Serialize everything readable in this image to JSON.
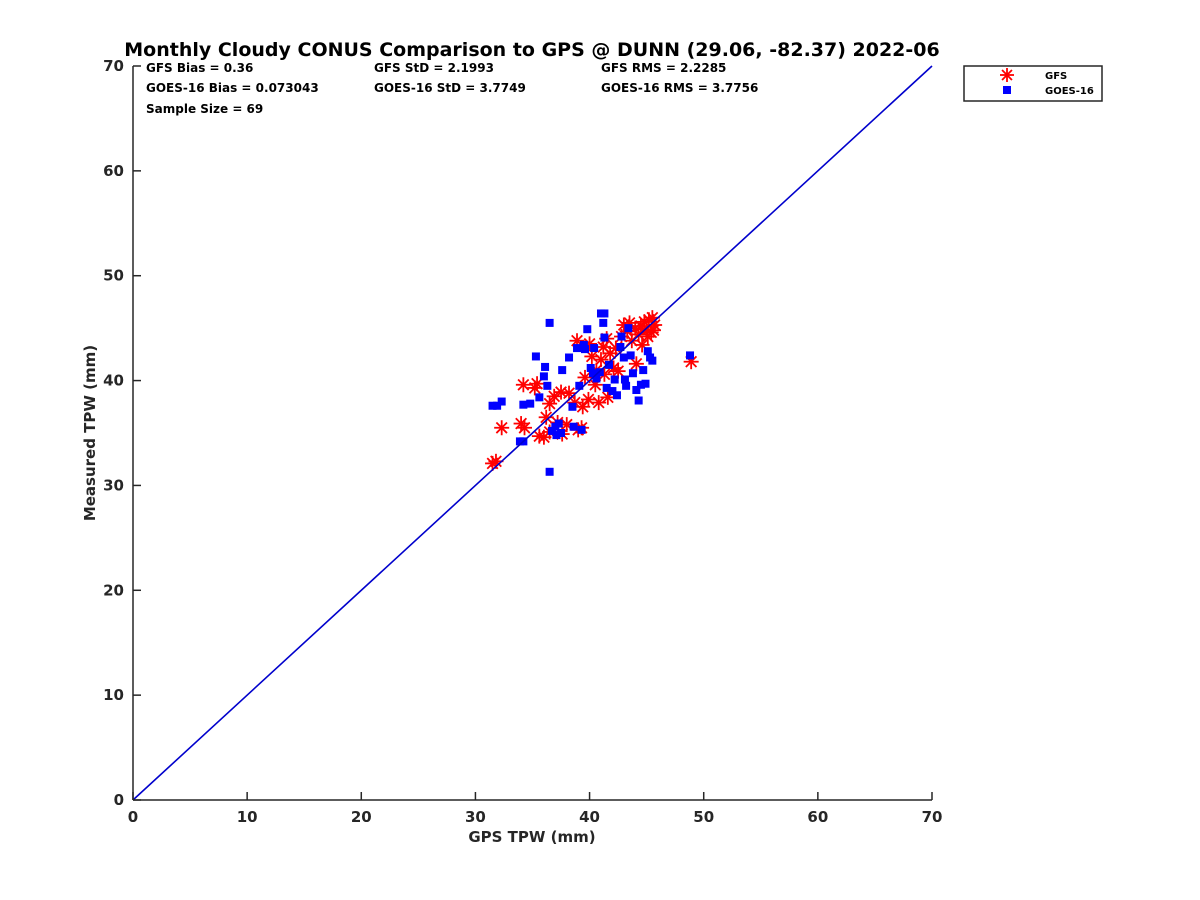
{
  "chart_data": {
    "type": "scatter",
    "title": "Monthly Cloudy CONUS Comparison to GPS @ DUNN (29.06, -82.37) 2022-06",
    "xlabel": "GPS TPW (mm)",
    "ylabel": "Measured TPW (mm)",
    "xlim": [
      0,
      70
    ],
    "ylim": [
      0,
      70
    ],
    "xticks": [
      "0",
      "10",
      "20",
      "30",
      "40",
      "50",
      "60",
      "70"
    ],
    "yticks": [
      "0",
      "10",
      "20",
      "30",
      "40",
      "50",
      "60",
      "70"
    ],
    "grid": false,
    "legend_position": "top-right",
    "stats": {
      "gfs_bias": "GFS Bias = 0.36",
      "goes_bias": "GOES-16 Bias = 0.073043",
      "sample_size": "Sample Size = 69",
      "gfs_std": "GFS StD = 2.1993",
      "goes_std": "GOES-16 StD = 3.7749",
      "gfs_rms": "GFS RMS = 2.2285",
      "goes_rms": "GOES-16 RMS = 3.7756"
    },
    "reference_line": {
      "x": [
        0,
        70
      ],
      "y": [
        0,
        70
      ],
      "color": "#0000cc"
    },
    "series": [
      {
        "name": "GFS",
        "marker": "asterisk",
        "color": "#ff0000",
        "points": [
          [
            31.5,
            32.1
          ],
          [
            31.8,
            32.3
          ],
          [
            32.3,
            35.5
          ],
          [
            34.0,
            35.9
          ],
          [
            34.3,
            35.5
          ],
          [
            34.2,
            39.6
          ],
          [
            35.2,
            39.3
          ],
          [
            35.4,
            39.7
          ],
          [
            35.6,
            34.7
          ],
          [
            36.0,
            34.6
          ],
          [
            36.2,
            36.5
          ],
          [
            36.5,
            37.8
          ],
          [
            36.5,
            35.1
          ],
          [
            36.9,
            38.5
          ],
          [
            37.2,
            36.0
          ],
          [
            37.5,
            38.9
          ],
          [
            37.6,
            34.9
          ],
          [
            38.0,
            35.8
          ],
          [
            38.2,
            38.8
          ],
          [
            38.7,
            37.9
          ],
          [
            38.9,
            43.8
          ],
          [
            39.0,
            35.3
          ],
          [
            39.3,
            35.5
          ],
          [
            39.4,
            37.5
          ],
          [
            39.6,
            40.3
          ],
          [
            39.9,
            38.2
          ],
          [
            40.0,
            43.5
          ],
          [
            40.2,
            42.3
          ],
          [
            40.5,
            39.6
          ],
          [
            40.6,
            41.0
          ],
          [
            40.8,
            37.9
          ],
          [
            41.0,
            42.0
          ],
          [
            41.2,
            43.2
          ],
          [
            41.3,
            40.6
          ],
          [
            41.5,
            44.0
          ],
          [
            41.6,
            38.4
          ],
          [
            41.8,
            42.6
          ],
          [
            42.1,
            41.2
          ],
          [
            42.3,
            43.1
          ],
          [
            42.5,
            40.9
          ],
          [
            42.8,
            44.2
          ],
          [
            43.0,
            45.3
          ],
          [
            43.3,
            44.7
          ],
          [
            43.5,
            45.5
          ],
          [
            43.7,
            43.8
          ],
          [
            44.0,
            45.0
          ],
          [
            44.1,
            41.6
          ],
          [
            44.3,
            44.4
          ],
          [
            44.5,
            45.2
          ],
          [
            44.6,
            43.4
          ],
          [
            44.8,
            45.6
          ],
          [
            45.0,
            44.9
          ],
          [
            45.1,
            44.2
          ],
          [
            45.2,
            45.8
          ],
          [
            45.4,
            44.6
          ],
          [
            45.5,
            46.0
          ],
          [
            45.6,
            44.8
          ],
          [
            45.7,
            45.3
          ],
          [
            48.9,
            41.8
          ]
        ]
      },
      {
        "name": "GOES-16",
        "marker": "square",
        "color": "#0000ff",
        "points": [
          [
            31.5,
            37.6
          ],
          [
            31.9,
            37.6
          ],
          [
            32.3,
            38.0
          ],
          [
            33.9,
            34.2
          ],
          [
            34.2,
            34.2
          ],
          [
            34.2,
            37.7
          ],
          [
            34.8,
            37.8
          ],
          [
            35.3,
            42.3
          ],
          [
            35.6,
            38.4
          ],
          [
            36.0,
            40.4
          ],
          [
            36.1,
            41.3
          ],
          [
            36.3,
            39.5
          ],
          [
            36.5,
            45.5
          ],
          [
            36.5,
            31.3
          ],
          [
            36.7,
            35.2
          ],
          [
            37.0,
            35.6
          ],
          [
            37.1,
            34.8
          ],
          [
            37.3,
            35.9
          ],
          [
            37.5,
            35.0
          ],
          [
            37.6,
            41.0
          ],
          [
            38.2,
            42.2
          ],
          [
            38.5,
            37.5
          ],
          [
            38.6,
            35.6
          ],
          [
            38.9,
            43.1
          ],
          [
            39.1,
            39.5
          ],
          [
            39.3,
            35.3
          ],
          [
            39.5,
            43.4
          ],
          [
            39.6,
            43.0
          ],
          [
            39.8,
            44.9
          ],
          [
            40.1,
            41.2
          ],
          [
            40.3,
            40.7
          ],
          [
            40.4,
            43.1
          ],
          [
            40.6,
            40.2
          ],
          [
            40.9,
            40.8
          ],
          [
            41.0,
            46.4
          ],
          [
            41.2,
            45.5
          ],
          [
            41.3,
            44.1
          ],
          [
            41.3,
            46.4
          ],
          [
            41.5,
            39.3
          ],
          [
            41.7,
            41.5
          ],
          [
            42.0,
            39.0
          ],
          [
            42.2,
            40.1
          ],
          [
            42.4,
            38.6
          ],
          [
            42.7,
            43.2
          ],
          [
            42.8,
            44.2
          ],
          [
            43.0,
            42.2
          ],
          [
            43.1,
            40.1
          ],
          [
            43.2,
            39.5
          ],
          [
            43.4,
            45.0
          ],
          [
            43.6,
            42.4
          ],
          [
            43.8,
            40.7
          ],
          [
            44.1,
            39.1
          ],
          [
            44.3,
            38.1
          ],
          [
            44.5,
            39.6
          ],
          [
            44.7,
            41.0
          ],
          [
            44.9,
            39.7
          ],
          [
            45.1,
            42.8
          ],
          [
            45.3,
            42.2
          ],
          [
            45.5,
            41.9
          ],
          [
            48.8,
            42.4
          ]
        ]
      }
    ]
  }
}
